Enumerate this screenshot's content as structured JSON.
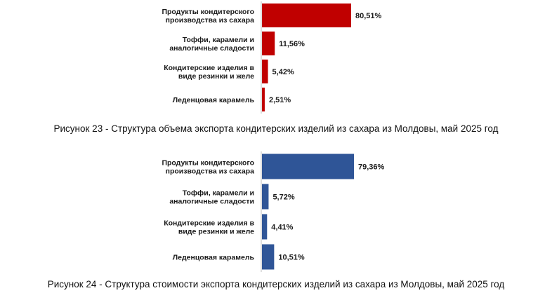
{
  "chart_data": [
    {
      "type": "bar",
      "orientation": "horizontal",
      "color": "#c00000",
      "categories": [
        [
          "Продукты кондитерского",
          "производства из сахара"
        ],
        [
          "Тоффи, карамели и",
          "аналогичные сладости"
        ],
        [
          "Кондитерские изделия в",
          "виде резинки и желе"
        ],
        [
          "Леденцовая карамель"
        ]
      ],
      "values": [
        80.51,
        11.56,
        5.42,
        2.51
      ],
      "value_labels": [
        "80,51%",
        "11,56%",
        "5,42%",
        "2,51%"
      ],
      "title": "Рисунок 23 - Структура объема экспорта кондитерских изделий из сахара из Молдовы, май 2025 год",
      "grid": false,
      "legend": "none"
    },
    {
      "type": "bar",
      "orientation": "horizontal",
      "color": "#2f5597",
      "categories": [
        [
          "Продукты кондитерского",
          "производства из сахара"
        ],
        [
          "Тоффи, карамели и",
          "аналогичные сладости"
        ],
        [
          "Кондитерские изделия в",
          "виде резинки и желе"
        ],
        [
          "Леденцовая карамель"
        ]
      ],
      "values": [
        79.36,
        5.72,
        4.41,
        10.51
      ],
      "value_labels": [
        "79,36%",
        "5,72%",
        "4,41%",
        "10,51%"
      ],
      "title": "Рисунок 24 - Структура стоимости экспорта кондитерских изделий из сахара из Молдовы, май 2025 год",
      "grid": false,
      "legend": "none"
    }
  ]
}
